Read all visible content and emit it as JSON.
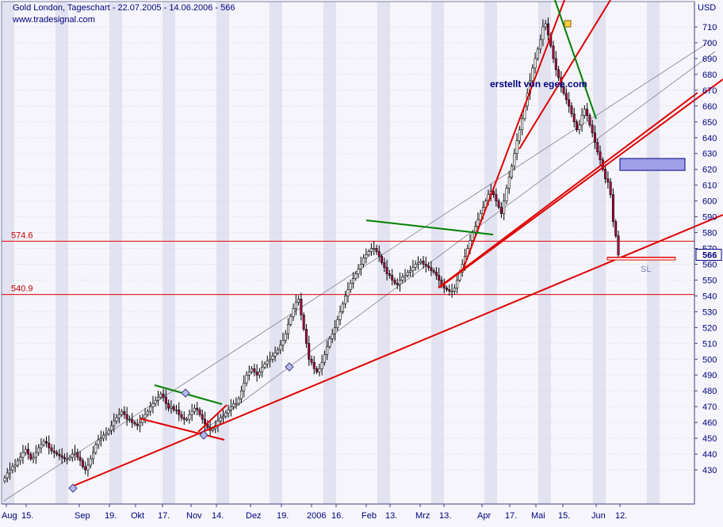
{
  "chart_data": {
    "type": "candlestick",
    "title": "Gold London, Tageschart - 22.07.2005 - 14.06.2006 - 566",
    "source": "www.tradesignal.com",
    "currency": "USD",
    "last_price": "566",
    "ylim": [
      420,
      720
    ],
    "grid": true,
    "y_ticks": [
      430,
      440,
      450,
      460,
      470,
      480,
      490,
      500,
      510,
      520,
      530,
      540,
      550,
      560,
      570,
      580,
      590,
      600,
      610,
      620,
      630,
      640,
      650,
      660,
      670,
      680,
      690,
      700,
      710
    ],
    "x_ticks": [
      "Aug",
      "15.",
      "Sep",
      "19.",
      "Okt",
      "17.",
      "Nov",
      "14.",
      "Dez",
      "19.",
      "2006",
      "16.",
      "Feb",
      "13.",
      "Mrz",
      "13.",
      "Apr",
      "17.",
      "Mai",
      "15.",
      "Jun",
      "12."
    ],
    "levels": [
      {
        "label": "574.6",
        "value": 574.6
      },
      {
        "label": "540.9",
        "value": 540.9
      }
    ],
    "annotations": {
      "author": "erstellt von egee.com",
      "stop_loss": "SL"
    },
    "closes": [
      425,
      428,
      430,
      432,
      433,
      436,
      438,
      441,
      443,
      440,
      437,
      438,
      441,
      444,
      446,
      448,
      447,
      444,
      442,
      441,
      440,
      439,
      438,
      437,
      437,
      438,
      440,
      441,
      438,
      436,
      432,
      430,
      433,
      437,
      441,
      446,
      449,
      450,
      452,
      453,
      455,
      458,
      461,
      463,
      465,
      467,
      465,
      462,
      462,
      460,
      459,
      458,
      460,
      463,
      465,
      467,
      470,
      472,
      474,
      476,
      478,
      476,
      472,
      469,
      470,
      468,
      468,
      465,
      463,
      462,
      462,
      465,
      467,
      469,
      468,
      465,
      462,
      459,
      457,
      455,
      456,
      458,
      461,
      463,
      464,
      466,
      468,
      470,
      472,
      472,
      475,
      480,
      485,
      490,
      492,
      494,
      492,
      490,
      492,
      495,
      497,
      499,
      500,
      502,
      504,
      506,
      509,
      512,
      516,
      522,
      527,
      532,
      536,
      538,
      528,
      519,
      510,
      500,
      498,
      494,
      492,
      494,
      498,
      503,
      508,
      513,
      516,
      520,
      525,
      530,
      535,
      540,
      544,
      548,
      551,
      554,
      557,
      560,
      564,
      566,
      568,
      570,
      570,
      568,
      565,
      561,
      558,
      554,
      553,
      550,
      548,
      547,
      550,
      552,
      553,
      555,
      556,
      558,
      560,
      561,
      562,
      560,
      559,
      558,
      556,
      555,
      553,
      550,
      547,
      545,
      544,
      543,
      543,
      545,
      550,
      555,
      560,
      565,
      570,
      575,
      580,
      584,
      588,
      592,
      596,
      600,
      604,
      606,
      604,
      600,
      596,
      592,
      600,
      608,
      615,
      622,
      630,
      638,
      645,
      652,
      660,
      668,
      676,
      684,
      690,
      696,
      702,
      710,
      712,
      705,
      698,
      690,
      683,
      678,
      672,
      668,
      664,
      660,
      655,
      650,
      645,
      648,
      654,
      658,
      654,
      648,
      643,
      637,
      631,
      626,
      620,
      614,
      612,
      604,
      587,
      578,
      566
    ]
  }
}
